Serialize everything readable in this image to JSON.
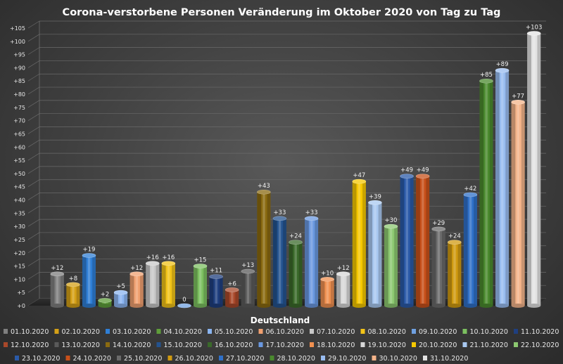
{
  "chart_data": {
    "type": "bar",
    "title": "Corona-verstorbene Personen Veränderung im Oktober 2020 von Tag zu Tag",
    "categories": [
      "Deutschland"
    ],
    "xlabel": "",
    "ylabel": "",
    "ylim": [
      0,
      110
    ],
    "ytick_step": 5,
    "ytick_labels": [
      "+0",
      "+5",
      "+10",
      "+15",
      "+20",
      "+25",
      "+30",
      "+35",
      "+40",
      "+45",
      "+50",
      "+55",
      "+60",
      "+65",
      "+70",
      "+75",
      "+80",
      "+85",
      "+90",
      "+95",
      "+100",
      "+105",
      "+110"
    ],
    "grid": true,
    "legend_position": "bottom",
    "series": [
      {
        "name": "01.10.2020",
        "value": 12,
        "label": "+12",
        "color": "#7f7f7f"
      },
      {
        "name": "02.10.2020",
        "value": 8,
        "label": "+8",
        "color": "#d4a017"
      },
      {
        "name": "03.10.2020",
        "value": 19,
        "label": "+19",
        "color": "#2f7fd6"
      },
      {
        "name": "04.10.2020",
        "value": 2,
        "label": "+2",
        "color": "#5f9e3a"
      },
      {
        "name": "05.10.2020",
        "value": 5,
        "label": "+5",
        "color": "#8ab4f0"
      },
      {
        "name": "06.10.2020",
        "value": 12,
        "label": "+12",
        "color": "#f0a070"
      },
      {
        "name": "07.10.2020",
        "value": 16,
        "label": "+16",
        "color": "#c8c8c8"
      },
      {
        "name": "08.10.2020",
        "value": 16,
        "label": "+16",
        "color": "#f2c318"
      },
      {
        "name": "09.10.2020",
        "value": 0,
        "label": "0",
        "color": "#6fa0e0"
      },
      {
        "name": "10.10.2020",
        "value": 15,
        "label": "+15",
        "color": "#7cc060"
      },
      {
        "name": "11.10.2020",
        "value": 11,
        "label": "+11",
        "color": "#1f3f7f"
      },
      {
        "name": "12.10.2020",
        "value": 6,
        "label": "+6",
        "color": "#a8482a"
      },
      {
        "name": "13.10.2020",
        "value": 13,
        "label": "+13",
        "color": "#5a5a5a"
      },
      {
        "name": "14.10.2020",
        "value": 43,
        "label": "+43",
        "color": "#8a6a10"
      },
      {
        "name": "15.10.2020",
        "value": 33,
        "label": "+33",
        "color": "#24538f"
      },
      {
        "name": "16.10.2020",
        "value": 24,
        "label": "+24",
        "color": "#3a6a2a"
      },
      {
        "name": "17.10.2020",
        "value": 33,
        "label": "+33",
        "color": "#6a98e0"
      },
      {
        "name": "18.10.2020",
        "value": 10,
        "label": "+10",
        "color": "#f09050"
      },
      {
        "name": "19.10.2020",
        "value": 12,
        "label": "+12",
        "color": "#d8d8d8"
      },
      {
        "name": "20.10.2020",
        "value": 47,
        "label": "+47",
        "color": "#f5c800"
      },
      {
        "name": "21.10.2020",
        "value": 39,
        "label": "+39",
        "color": "#a8c8f0"
      },
      {
        "name": "22.10.2020",
        "value": 30,
        "label": "+30",
        "color": "#8cc870"
      },
      {
        "name": "23.10.2020",
        "value": 49,
        "label": "+49",
        "color": "#2a5aa8"
      },
      {
        "name": "24.10.2020",
        "value": 49,
        "label": "+49",
        "color": "#c8501a"
      },
      {
        "name": "25.10.2020",
        "value": 29,
        "label": "+29",
        "color": "#6a6a6a"
      },
      {
        "name": "26.10.2020",
        "value": 24,
        "label": "+24",
        "color": "#d09a10"
      },
      {
        "name": "27.10.2020",
        "value": 42,
        "label": "+42",
        "color": "#2f70c8"
      },
      {
        "name": "28.10.2020",
        "value": 85,
        "label": "+85",
        "color": "#4a8a2e"
      },
      {
        "name": "29.10.2020",
        "value": 89,
        "label": "+89",
        "color": "#98bcf0"
      },
      {
        "name": "30.10.2020",
        "value": 77,
        "label": "+77",
        "color": "#f4b48a"
      },
      {
        "name": "31.10.2020",
        "value": 103,
        "label": "+103",
        "color": "#e2e2e2"
      }
    ]
  }
}
